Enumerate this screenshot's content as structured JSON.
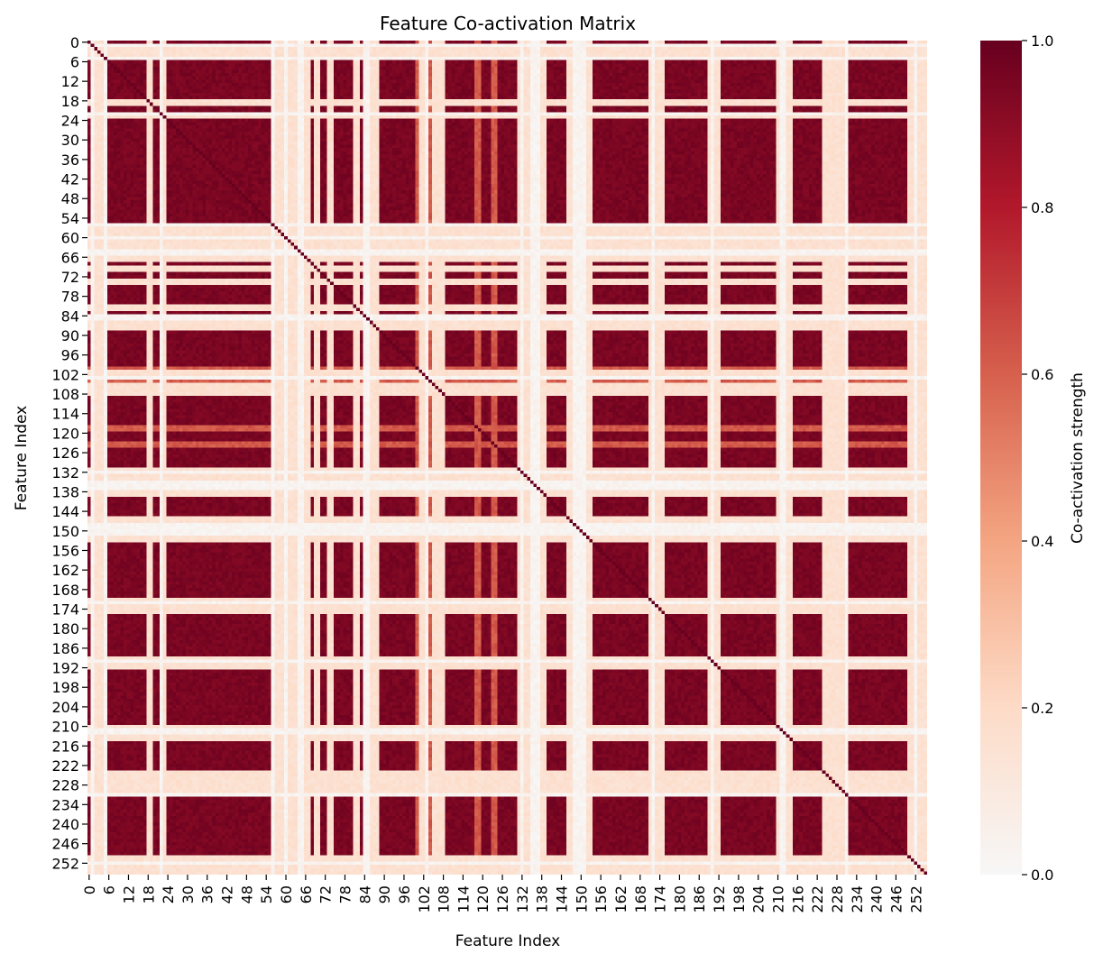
{
  "chart_data": {
    "type": "heatmap",
    "title": "Feature Co-activation Matrix",
    "xlabel": "Feature Index",
    "ylabel": "Feature Index",
    "n": 256,
    "x_ticks": [
      0,
      6,
      12,
      18,
      24,
      30,
      36,
      42,
      48,
      54,
      60,
      66,
      72,
      78,
      84,
      90,
      96,
      102,
      108,
      114,
      120,
      126,
      132,
      138,
      144,
      150,
      156,
      162,
      168,
      174,
      180,
      186,
      192,
      198,
      204,
      210,
      216,
      222,
      228,
      234,
      240,
      246,
      252
    ],
    "y_ticks": [
      0,
      6,
      12,
      18,
      24,
      30,
      36,
      42,
      48,
      54,
      60,
      66,
      72,
      78,
      84,
      90,
      96,
      102,
      108,
      114,
      120,
      126,
      132,
      138,
      144,
      150,
      156,
      162,
      168,
      174,
      180,
      186,
      192,
      198,
      204,
      210,
      216,
      222,
      228,
      234,
      240,
      246,
      252
    ],
    "colorbar": {
      "label": "Co-activation strength",
      "range": [
        0.0,
        1.0
      ],
      "ticks": [
        0.0,
        0.2,
        0.4,
        0.6,
        0.8,
        1.0
      ],
      "tick_labels": [
        "0.0",
        "0.2",
        "0.4",
        "0.6",
        "0.8",
        "1.0"
      ],
      "colormap": "Reds (white to dark red)",
      "colors": [
        "#f7f7f7",
        "#fddbc7",
        "#f4a582",
        "#d6604d",
        "#b2182b",
        "#67001f"
      ]
    },
    "diagonal_value": 1.0,
    "typical_active_value": 0.95,
    "weak_features": {
      "near_zero": [
        1,
        5,
        22,
        56,
        60,
        64,
        65,
        84,
        85,
        103,
        132,
        135,
        136,
        137,
        148,
        149,
        150,
        151,
        172,
        190,
        211,
        212,
        231,
        252
      ],
      "low": [
        2,
        3,
        4,
        18,
        19,
        23,
        57,
        58,
        59,
        61,
        62,
        63,
        66,
        67,
        69,
        70,
        73,
        74,
        81,
        82,
        86,
        87,
        88,
        101,
        102,
        105,
        106,
        107,
        108,
        131,
        133,
        134,
        138,
        139,
        146,
        147,
        152,
        153,
        171,
        173,
        174,
        175,
        189,
        191,
        192,
        210,
        213,
        214,
        224,
        225,
        226,
        227,
        228,
        229,
        230,
        250,
        251,
        253,
        254,
        255
      ],
      "moderate": [
        100,
        104,
        118,
        119,
        123,
        124
      ]
    }
  }
}
